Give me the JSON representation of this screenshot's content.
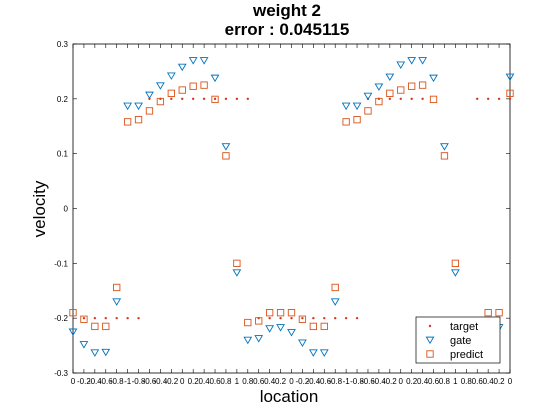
{
  "chart_data": {
    "type": "scatter",
    "title": "weight 2",
    "subtitle": "error : 0.045115",
    "xlabel": "location",
    "ylabel": "velocity",
    "ylim": [
      -0.3,
      0.3
    ],
    "xlim": [
      0,
      40
    ],
    "yticks": [
      "-0.3",
      "-0.2",
      "-0.1",
      "0",
      "0.1",
      "0.2",
      "0.3"
    ],
    "xtick_labels": [
      "0",
      "-0.2",
      "-0.4",
      "-0.6",
      "-0.8",
      "-1",
      "-0.8",
      "-0.6",
      "-0.4",
      "-0.2",
      "0",
      "0.2",
      "0.4",
      "0.6",
      "0.8",
      "1",
      "0.8",
      "0.6",
      "0.4",
      "0.2",
      "0",
      "-0.2",
      "-0.4",
      "-0.6",
      "-0.8",
      "-1",
      "-0.8",
      "-0.6",
      "-0.4",
      "-0.2",
      "0",
      "0.2",
      "0.4",
      "0.6",
      "0.8",
      "1",
      "0.8",
      "0.6",
      "0.4",
      "0.2",
      "0"
    ],
    "legend_position": "bottom-right",
    "colors": {
      "target": "#d63a1f",
      "gate": "#0072bd",
      "predict": "#d95319"
    },
    "series": [
      {
        "name": "target",
        "marker": "dot",
        "x": [
          1,
          2,
          3,
          4,
          5,
          6,
          7,
          8,
          9,
          10,
          11,
          12,
          13,
          14,
          15,
          16,
          17,
          18,
          19,
          20,
          21,
          22,
          23,
          24,
          25,
          26,
          27,
          28,
          29,
          30,
          31,
          32,
          33,
          34,
          35,
          36,
          37,
          38,
          39,
          40
        ],
        "values": [
          -0.2,
          -0.2,
          -0.2,
          -0.2,
          -0.2,
          -0.2,
          0.2,
          0.2,
          0.2,
          0.2,
          0.2,
          0.2,
          0.2,
          0.2,
          0.2,
          0.2,
          -0.2,
          -0.2,
          -0.2,
          -0.2,
          -0.2,
          -0.2,
          -0.2,
          -0.2,
          -0.2,
          -0.2,
          0.2,
          0.2,
          0.2,
          0.2,
          0.2,
          0.2,
          -0.2,
          -0.2,
          -0.2,
          -0.2,
          0.2,
          0.2,
          0.2,
          0.2
        ]
      },
      {
        "name": "gate",
        "marker": "triangle-down",
        "x": [
          0,
          1,
          2,
          3,
          4,
          5,
          6,
          7,
          8,
          9,
          10,
          11,
          12,
          13,
          14,
          15,
          16,
          17,
          18,
          19,
          20,
          21,
          22,
          23,
          24,
          25,
          26,
          27,
          28,
          29,
          30,
          31,
          32,
          33,
          34,
          35,
          36,
          37,
          38,
          39,
          40
        ],
        "values": [
          -0.225,
          -0.248,
          -0.263,
          -0.262,
          -0.17,
          0.187,
          0.187,
          0.207,
          0.224,
          0.242,
          0.258,
          0.27,
          0.27,
          0.238,
          0.113,
          -0.117,
          -0.24,
          -0.237,
          -0.219,
          -0.217,
          -0.226,
          -0.245,
          -0.263,
          -0.263,
          -0.17,
          0.187,
          0.187,
          0.205,
          0.222,
          0.24,
          0.262,
          0.27,
          0.27,
          0.238,
          0.113,
          -0.117,
          -0.24,
          -0.237,
          -0.219,
          -0.217,
          0.24
        ]
      },
      {
        "name": "predict",
        "marker": "square",
        "x": [
          0,
          1,
          2,
          3,
          4,
          5,
          6,
          7,
          8,
          9,
          10,
          11,
          12,
          13,
          14,
          15,
          16,
          17,
          18,
          19,
          20,
          21,
          22,
          23,
          24,
          25,
          26,
          27,
          28,
          29,
          30,
          31,
          32,
          33,
          34,
          35,
          36,
          37,
          38,
          39,
          40
        ],
        "values": [
          -0.19,
          -0.202,
          -0.215,
          -0.215,
          -0.144,
          0.158,
          0.162,
          0.178,
          0.195,
          0.21,
          0.216,
          0.223,
          0.225,
          0.199,
          0.096,
          -0.1,
          -0.208,
          -0.205,
          -0.19,
          -0.19,
          -0.19,
          -0.202,
          -0.215,
          -0.215,
          -0.144,
          0.158,
          0.162,
          0.178,
          0.195,
          0.21,
          0.216,
          0.223,
          0.225,
          0.199,
          0.096,
          -0.1,
          -0.208,
          -0.205,
          -0.19,
          -0.19,
          0.21
        ]
      }
    ]
  }
}
